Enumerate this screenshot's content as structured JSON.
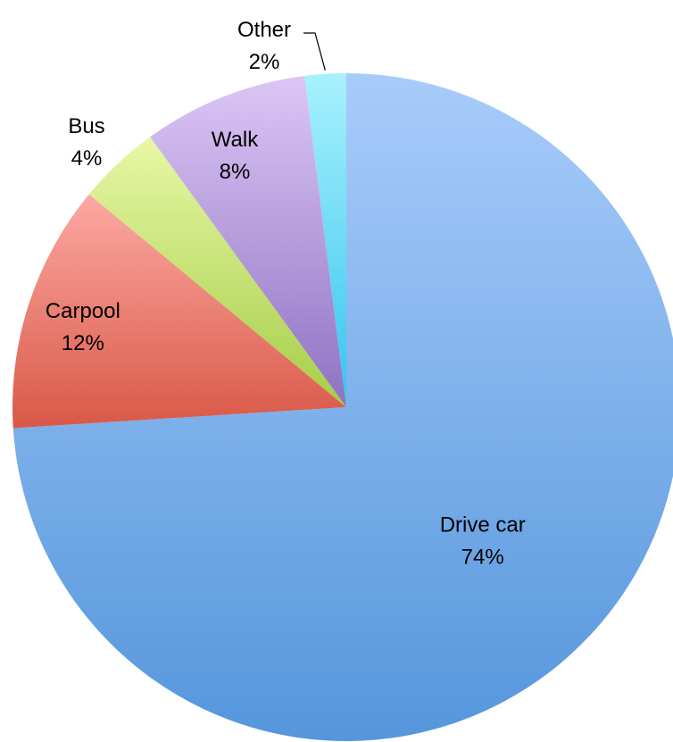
{
  "chart_data": {
    "type": "pie",
    "title": "",
    "slices": [
      {
        "label": "Drive car",
        "value": 74,
        "value_label": "74%",
        "colors": [
          "#a8ccfa",
          "#5596dc"
        ]
      },
      {
        "label": "Carpool",
        "value": 12,
        "value_label": "12%",
        "colors": [
          "#fca9a3",
          "#d95847"
        ]
      },
      {
        "label": "Bus",
        "value": 4,
        "value_label": "4%",
        "colors": [
          "#e8f7a6",
          "#a5cd48"
        ]
      },
      {
        "label": "Walk",
        "value": 8,
        "value_label": "8%",
        "colors": [
          "#dcc6f5",
          "#8e72c2"
        ]
      },
      {
        "label": "Other",
        "value": 2,
        "value_label": "2%",
        "colors": [
          "#a9f1fd",
          "#34c4ee"
        ]
      }
    ],
    "start": "12 o'clock",
    "direction": "clockwise",
    "legend": "none",
    "data_labels": "category name and percentage"
  }
}
